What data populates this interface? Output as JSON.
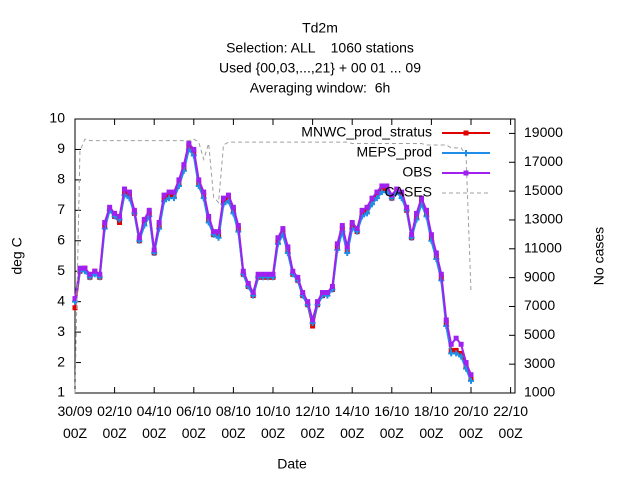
{
  "chart_data": {
    "type": "line",
    "title": "Td2m",
    "subtitle": [
      "Selection: ALL    1060 stations",
      "Used {00,03,...,21} + 00 01 ... 09",
      "Averaging window:  6h"
    ],
    "xlabel": "Date",
    "ylabel": "deg C",
    "y2label": "No cases",
    "categories": [
      "30/09 00Z",
      null,
      null,
      null,
      null,
      null,
      null,
      null,
      "02/10 00Z",
      null,
      null,
      null,
      null,
      null,
      null,
      null,
      "04/10 00Z",
      null,
      null,
      null,
      null,
      null,
      null,
      null,
      "06/10 00Z",
      null,
      null,
      null,
      null,
      null,
      null,
      null,
      "08/10 00Z",
      null,
      null,
      null,
      null,
      null,
      null,
      null,
      "10/10 00Z",
      null,
      null,
      null,
      null,
      null,
      null,
      null,
      "12/10 00Z",
      null,
      null,
      null,
      null,
      null,
      null,
      null,
      "14/10 00Z",
      null,
      null,
      null,
      null,
      null,
      null,
      null,
      "16/10 00Z",
      null,
      null,
      null,
      null,
      null,
      null,
      null,
      "18/10 00Z",
      null,
      null,
      null,
      null,
      null,
      null,
      null,
      "20/10 00Z",
      null,
      null,
      null,
      null,
      null,
      null,
      null,
      "22/10 00Z"
    ],
    "ylim": [
      1,
      10
    ],
    "yticks": [
      1,
      2,
      3,
      4,
      5,
      6,
      7,
      8,
      9,
      10
    ],
    "y2lim": [
      1000,
      20000
    ],
    "y2ticks": [
      1000,
      3000,
      5000,
      7000,
      9000,
      11000,
      13000,
      15000,
      17000,
      19000
    ],
    "legend": "top-right",
    "series": [
      {
        "name": "MNWC_prod_stratus",
        "color": "#e00000",
        "marker": "square",
        "values": [
          3.8,
          5.0,
          5.1,
          4.8,
          5.0,
          4.8,
          6.5,
          7.0,
          6.8,
          6.6,
          7.6,
          7.5,
          6.9,
          6.0,
          6.6,
          6.9,
          5.6,
          6.5,
          7.4,
          7.5,
          7.5,
          7.9,
          8.4,
          9.1,
          8.9,
          7.9,
          7.5,
          6.7,
          6.2,
          6.2,
          7.3,
          7.4,
          7.0,
          6.4,
          4.9,
          4.5,
          4.2,
          4.8,
          4.8,
          4.8,
          4.8,
          6.0,
          6.3,
          5.7,
          4.9,
          4.7,
          4.2,
          3.9,
          3.2,
          3.9,
          4.2,
          4.3,
          4.4,
          5.8,
          6.4,
          5.7,
          6.5,
          6.3,
          6.9,
          7.0,
          7.3,
          7.5,
          7.7,
          7.7,
          7.4,
          7.6,
          7.5,
          7.0,
          6.1,
          6.8,
          7.3,
          6.9,
          6.1,
          5.5,
          4.8,
          3.3,
          2.4,
          2.4,
          2.3,
          1.9,
          1.5,
          null,
          null,
          null,
          null,
          null,
          null,
          null,
          null
        ]
      },
      {
        "name": "MEPS_prod",
        "color": "#1e8ee8",
        "marker": "plus",
        "values": [
          4.0,
          5.0,
          5.0,
          4.8,
          4.9,
          4.8,
          6.4,
          7.0,
          6.8,
          6.7,
          7.5,
          7.4,
          6.9,
          6.0,
          6.5,
          6.8,
          5.6,
          6.4,
          7.3,
          7.4,
          7.4,
          7.8,
          8.3,
          9.0,
          8.8,
          7.8,
          7.4,
          6.6,
          6.2,
          6.1,
          7.2,
          7.3,
          6.9,
          6.3,
          4.9,
          4.5,
          4.2,
          4.8,
          4.8,
          4.8,
          4.8,
          5.9,
          6.2,
          5.6,
          4.9,
          4.7,
          4.2,
          3.9,
          3.3,
          3.9,
          4.2,
          4.2,
          4.4,
          5.7,
          6.3,
          5.6,
          6.4,
          6.3,
          6.8,
          6.9,
          7.2,
          7.4,
          7.6,
          7.6,
          7.4,
          7.6,
          7.4,
          7.0,
          6.1,
          6.7,
          7.2,
          6.8,
          6.0,
          5.4,
          4.7,
          3.2,
          2.3,
          2.3,
          2.2,
          1.8,
          1.4,
          null,
          null,
          null,
          null,
          null,
          null,
          null,
          null
        ]
      },
      {
        "name": "OBS",
        "color": "#a020f0",
        "marker": "square",
        "values": [
          4.1,
          5.1,
          5.1,
          4.9,
          5.0,
          4.9,
          6.6,
          7.1,
          6.9,
          6.8,
          7.7,
          7.6,
          7.0,
          6.1,
          6.7,
          7.0,
          5.7,
          6.6,
          7.5,
          7.6,
          7.6,
          8.0,
          8.5,
          9.2,
          9.0,
          8.0,
          7.6,
          6.8,
          6.3,
          6.3,
          7.4,
          7.5,
          7.1,
          6.5,
          5.0,
          4.6,
          4.3,
          4.9,
          4.9,
          4.9,
          4.9,
          6.1,
          6.4,
          5.8,
          5.0,
          4.8,
          4.3,
          4.0,
          3.4,
          4.0,
          4.3,
          4.3,
          4.5,
          5.9,
          6.5,
          5.8,
          6.6,
          6.4,
          7.0,
          7.1,
          7.4,
          7.6,
          7.8,
          7.8,
          7.5,
          7.7,
          7.6,
          7.1,
          6.2,
          6.9,
          7.4,
          7.0,
          6.2,
          5.6,
          4.9,
          3.4,
          2.6,
          2.8,
          2.6,
          2.0,
          1.6,
          null,
          null,
          null,
          null,
          null,
          null,
          null,
          null
        ]
      },
      {
        "name": "CASES",
        "color": "#a0a0a0",
        "axis": "y2",
        "dashed": true,
        "values": [
          1000,
          17800,
          18600,
          18500,
          18500,
          18500,
          18500,
          18500,
          18500,
          18500,
          18500,
          18500,
          18500,
          18500,
          18500,
          18500,
          18500,
          18500,
          18500,
          18500,
          18500,
          18500,
          18500,
          18500,
          18600,
          18400,
          17200,
          18300,
          14600,
          14200,
          18200,
          18400,
          18400,
          18400,
          18400,
          18400,
          18400,
          18400,
          18400,
          18400,
          18400,
          18400,
          18400,
          18400,
          18400,
          18400,
          18400,
          18400,
          18400,
          18400,
          18400,
          18400,
          18400,
          18400,
          18400,
          18400,
          18300,
          18300,
          18300,
          18300,
          18300,
          18300,
          18300,
          18300,
          18300,
          18300,
          18300,
          18300,
          18300,
          18300,
          18300,
          18200,
          18200,
          18200,
          18200,
          18200,
          18000,
          18000,
          18000,
          17500,
          8000,
          null,
          null,
          null,
          null,
          null,
          null,
          null,
          null
        ]
      }
    ]
  }
}
